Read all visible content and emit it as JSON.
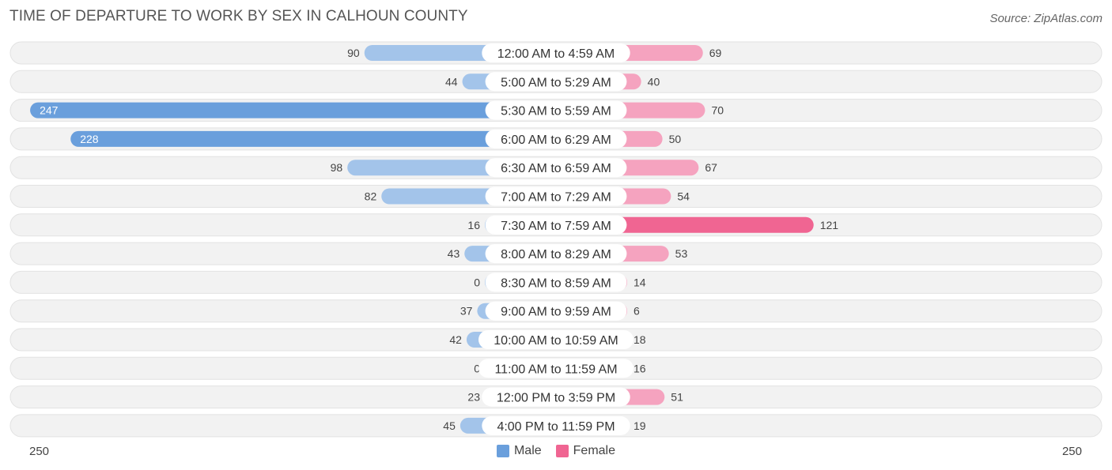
{
  "header": {
    "title": "TIME OF DEPARTURE TO WORK BY SEX IN CALHOUN COUNTY",
    "source": "Source: ZipAtlas.com"
  },
  "legend": {
    "male_label": "Male",
    "female_label": "Female"
  },
  "axis": {
    "left_label": "250",
    "right_label": "250"
  },
  "colors": {
    "male_bar": "#a3c4ea",
    "male_bar_strong": "#6a9fdc",
    "female_bar": "#f5a3bf",
    "female_bar_strong": "#f06592",
    "row_bg": "#eeeeee",
    "male_swatch": "#6a9fdc",
    "female_swatch": "#f06592"
  },
  "chart_data": {
    "type": "bar",
    "orientation": "horizontal-diverging",
    "title": "TIME OF DEPARTURE TO WORK BY SEX IN CALHOUN COUNTY",
    "categories": [
      "12:00 AM to 4:59 AM",
      "5:00 AM to 5:29 AM",
      "5:30 AM to 5:59 AM",
      "6:00 AM to 6:29 AM",
      "6:30 AM to 6:59 AM",
      "7:00 AM to 7:29 AM",
      "7:30 AM to 7:59 AM",
      "8:00 AM to 8:29 AM",
      "8:30 AM to 8:59 AM",
      "9:00 AM to 9:59 AM",
      "10:00 AM to 10:59 AM",
      "11:00 AM to 11:59 AM",
      "12:00 PM to 3:59 PM",
      "4:00 PM to 11:59 PM"
    ],
    "series": [
      {
        "name": "Male",
        "values": [
          90,
          44,
          247,
          228,
          98,
          82,
          16,
          43,
          0,
          37,
          42,
          0,
          23,
          45
        ]
      },
      {
        "name": "Female",
        "values": [
          69,
          40,
          70,
          50,
          67,
          54,
          121,
          53,
          14,
          6,
          18,
          16,
          51,
          19
        ]
      }
    ],
    "xlim": [
      -250,
      250
    ],
    "legend_position": "bottom-center"
  }
}
